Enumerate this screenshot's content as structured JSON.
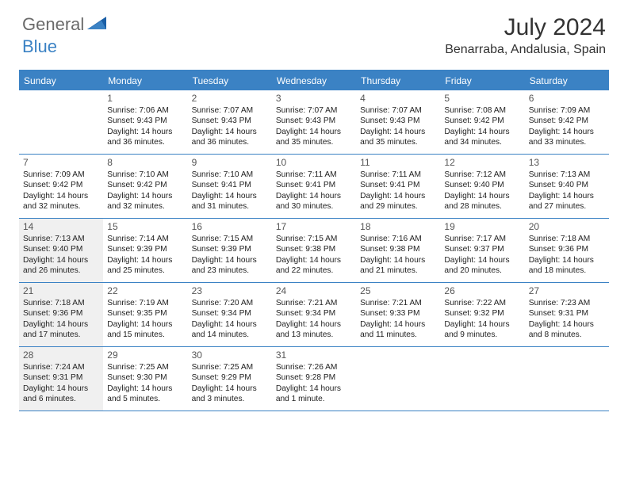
{
  "brand": {
    "part1": "General",
    "part2": "Blue"
  },
  "title": "July 2024",
  "location": "Benarraba, Andalusia, Spain",
  "colors": {
    "accent": "#3b82c4",
    "shaded_bg": "#f0f0f0",
    "text": "#222222",
    "muted": "#555555"
  },
  "weekdays": [
    "Sunday",
    "Monday",
    "Tuesday",
    "Wednesday",
    "Thursday",
    "Friday",
    "Saturday"
  ],
  "weeks": [
    [
      {
        "n": "",
        "sunrise": "",
        "sunset": "",
        "daylight": "",
        "shaded": false
      },
      {
        "n": "1",
        "sunrise": "Sunrise: 7:06 AM",
        "sunset": "Sunset: 9:43 PM",
        "daylight": "Daylight: 14 hours and 36 minutes.",
        "shaded": false
      },
      {
        "n": "2",
        "sunrise": "Sunrise: 7:07 AM",
        "sunset": "Sunset: 9:43 PM",
        "daylight": "Daylight: 14 hours and 36 minutes.",
        "shaded": false
      },
      {
        "n": "3",
        "sunrise": "Sunrise: 7:07 AM",
        "sunset": "Sunset: 9:43 PM",
        "daylight": "Daylight: 14 hours and 35 minutes.",
        "shaded": false
      },
      {
        "n": "4",
        "sunrise": "Sunrise: 7:07 AM",
        "sunset": "Sunset: 9:43 PM",
        "daylight": "Daylight: 14 hours and 35 minutes.",
        "shaded": false
      },
      {
        "n": "5",
        "sunrise": "Sunrise: 7:08 AM",
        "sunset": "Sunset: 9:42 PM",
        "daylight": "Daylight: 14 hours and 34 minutes.",
        "shaded": false
      },
      {
        "n": "6",
        "sunrise": "Sunrise: 7:09 AM",
        "sunset": "Sunset: 9:42 PM",
        "daylight": "Daylight: 14 hours and 33 minutes.",
        "shaded": false
      }
    ],
    [
      {
        "n": "7",
        "sunrise": "Sunrise: 7:09 AM",
        "sunset": "Sunset: 9:42 PM",
        "daylight": "Daylight: 14 hours and 32 minutes.",
        "shaded": false
      },
      {
        "n": "8",
        "sunrise": "Sunrise: 7:10 AM",
        "sunset": "Sunset: 9:42 PM",
        "daylight": "Daylight: 14 hours and 32 minutes.",
        "shaded": false
      },
      {
        "n": "9",
        "sunrise": "Sunrise: 7:10 AM",
        "sunset": "Sunset: 9:41 PM",
        "daylight": "Daylight: 14 hours and 31 minutes.",
        "shaded": false
      },
      {
        "n": "10",
        "sunrise": "Sunrise: 7:11 AM",
        "sunset": "Sunset: 9:41 PM",
        "daylight": "Daylight: 14 hours and 30 minutes.",
        "shaded": false
      },
      {
        "n": "11",
        "sunrise": "Sunrise: 7:11 AM",
        "sunset": "Sunset: 9:41 PM",
        "daylight": "Daylight: 14 hours and 29 minutes.",
        "shaded": false
      },
      {
        "n": "12",
        "sunrise": "Sunrise: 7:12 AM",
        "sunset": "Sunset: 9:40 PM",
        "daylight": "Daylight: 14 hours and 28 minutes.",
        "shaded": false
      },
      {
        "n": "13",
        "sunrise": "Sunrise: 7:13 AM",
        "sunset": "Sunset: 9:40 PM",
        "daylight": "Daylight: 14 hours and 27 minutes.",
        "shaded": false
      }
    ],
    [
      {
        "n": "14",
        "sunrise": "Sunrise: 7:13 AM",
        "sunset": "Sunset: 9:40 PM",
        "daylight": "Daylight: 14 hours and 26 minutes.",
        "shaded": true
      },
      {
        "n": "15",
        "sunrise": "Sunrise: 7:14 AM",
        "sunset": "Sunset: 9:39 PM",
        "daylight": "Daylight: 14 hours and 25 minutes.",
        "shaded": false
      },
      {
        "n": "16",
        "sunrise": "Sunrise: 7:15 AM",
        "sunset": "Sunset: 9:39 PM",
        "daylight": "Daylight: 14 hours and 23 minutes.",
        "shaded": false
      },
      {
        "n": "17",
        "sunrise": "Sunrise: 7:15 AM",
        "sunset": "Sunset: 9:38 PM",
        "daylight": "Daylight: 14 hours and 22 minutes.",
        "shaded": false
      },
      {
        "n": "18",
        "sunrise": "Sunrise: 7:16 AM",
        "sunset": "Sunset: 9:38 PM",
        "daylight": "Daylight: 14 hours and 21 minutes.",
        "shaded": false
      },
      {
        "n": "19",
        "sunrise": "Sunrise: 7:17 AM",
        "sunset": "Sunset: 9:37 PM",
        "daylight": "Daylight: 14 hours and 20 minutes.",
        "shaded": false
      },
      {
        "n": "20",
        "sunrise": "Sunrise: 7:18 AM",
        "sunset": "Sunset: 9:36 PM",
        "daylight": "Daylight: 14 hours and 18 minutes.",
        "shaded": false
      }
    ],
    [
      {
        "n": "21",
        "sunrise": "Sunrise: 7:18 AM",
        "sunset": "Sunset: 9:36 PM",
        "daylight": "Daylight: 14 hours and 17 minutes.",
        "shaded": true
      },
      {
        "n": "22",
        "sunrise": "Sunrise: 7:19 AM",
        "sunset": "Sunset: 9:35 PM",
        "daylight": "Daylight: 14 hours and 15 minutes.",
        "shaded": false
      },
      {
        "n": "23",
        "sunrise": "Sunrise: 7:20 AM",
        "sunset": "Sunset: 9:34 PM",
        "daylight": "Daylight: 14 hours and 14 minutes.",
        "shaded": false
      },
      {
        "n": "24",
        "sunrise": "Sunrise: 7:21 AM",
        "sunset": "Sunset: 9:34 PM",
        "daylight": "Daylight: 14 hours and 13 minutes.",
        "shaded": false
      },
      {
        "n": "25",
        "sunrise": "Sunrise: 7:21 AM",
        "sunset": "Sunset: 9:33 PM",
        "daylight": "Daylight: 14 hours and 11 minutes.",
        "shaded": false
      },
      {
        "n": "26",
        "sunrise": "Sunrise: 7:22 AM",
        "sunset": "Sunset: 9:32 PM",
        "daylight": "Daylight: 14 hours and 9 minutes.",
        "shaded": false
      },
      {
        "n": "27",
        "sunrise": "Sunrise: 7:23 AM",
        "sunset": "Sunset: 9:31 PM",
        "daylight": "Daylight: 14 hours and 8 minutes.",
        "shaded": false
      }
    ],
    [
      {
        "n": "28",
        "sunrise": "Sunrise: 7:24 AM",
        "sunset": "Sunset: 9:31 PM",
        "daylight": "Daylight: 14 hours and 6 minutes.",
        "shaded": true
      },
      {
        "n": "29",
        "sunrise": "Sunrise: 7:25 AM",
        "sunset": "Sunset: 9:30 PM",
        "daylight": "Daylight: 14 hours and 5 minutes.",
        "shaded": false
      },
      {
        "n": "30",
        "sunrise": "Sunrise: 7:25 AM",
        "sunset": "Sunset: 9:29 PM",
        "daylight": "Daylight: 14 hours and 3 minutes.",
        "shaded": false
      },
      {
        "n": "31",
        "sunrise": "Sunrise: 7:26 AM",
        "sunset": "Sunset: 9:28 PM",
        "daylight": "Daylight: 14 hours and 1 minute.",
        "shaded": false
      },
      {
        "n": "",
        "sunrise": "",
        "sunset": "",
        "daylight": "",
        "shaded": false
      },
      {
        "n": "",
        "sunrise": "",
        "sunset": "",
        "daylight": "",
        "shaded": false
      },
      {
        "n": "",
        "sunrise": "",
        "sunset": "",
        "daylight": "",
        "shaded": false
      }
    ]
  ]
}
